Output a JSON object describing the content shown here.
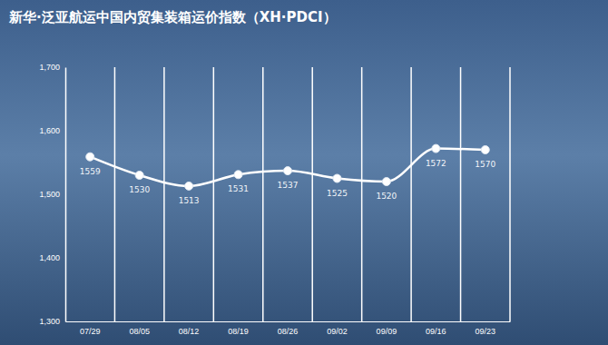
{
  "chart_data": {
    "type": "line",
    "title": "新华·泛亚航运中国内贸集装箱运价指数（XH·PDCI）",
    "categories": [
      "07/29",
      "08/05",
      "08/12",
      "08/19",
      "08/26",
      "09/02",
      "09/09",
      "09/16",
      "09/23"
    ],
    "values": [
      1559,
      1530,
      1513,
      1531,
      1537,
      1525,
      1520,
      1572,
      1570
    ],
    "color": "#ffffff",
    "marker": "circle",
    "line_style": "solid",
    "ylim": [
      1300,
      1700
    ],
    "yticks": [
      {
        "value": 1300,
        "label": "1,300"
      },
      {
        "value": 1400,
        "label": "1,400"
      },
      {
        "value": 1500,
        "label": "1,500"
      },
      {
        "value": 1600,
        "label": "1,600"
      },
      {
        "value": 1700,
        "label": "1,700"
      }
    ],
    "grid": true,
    "data_labels": true
  }
}
